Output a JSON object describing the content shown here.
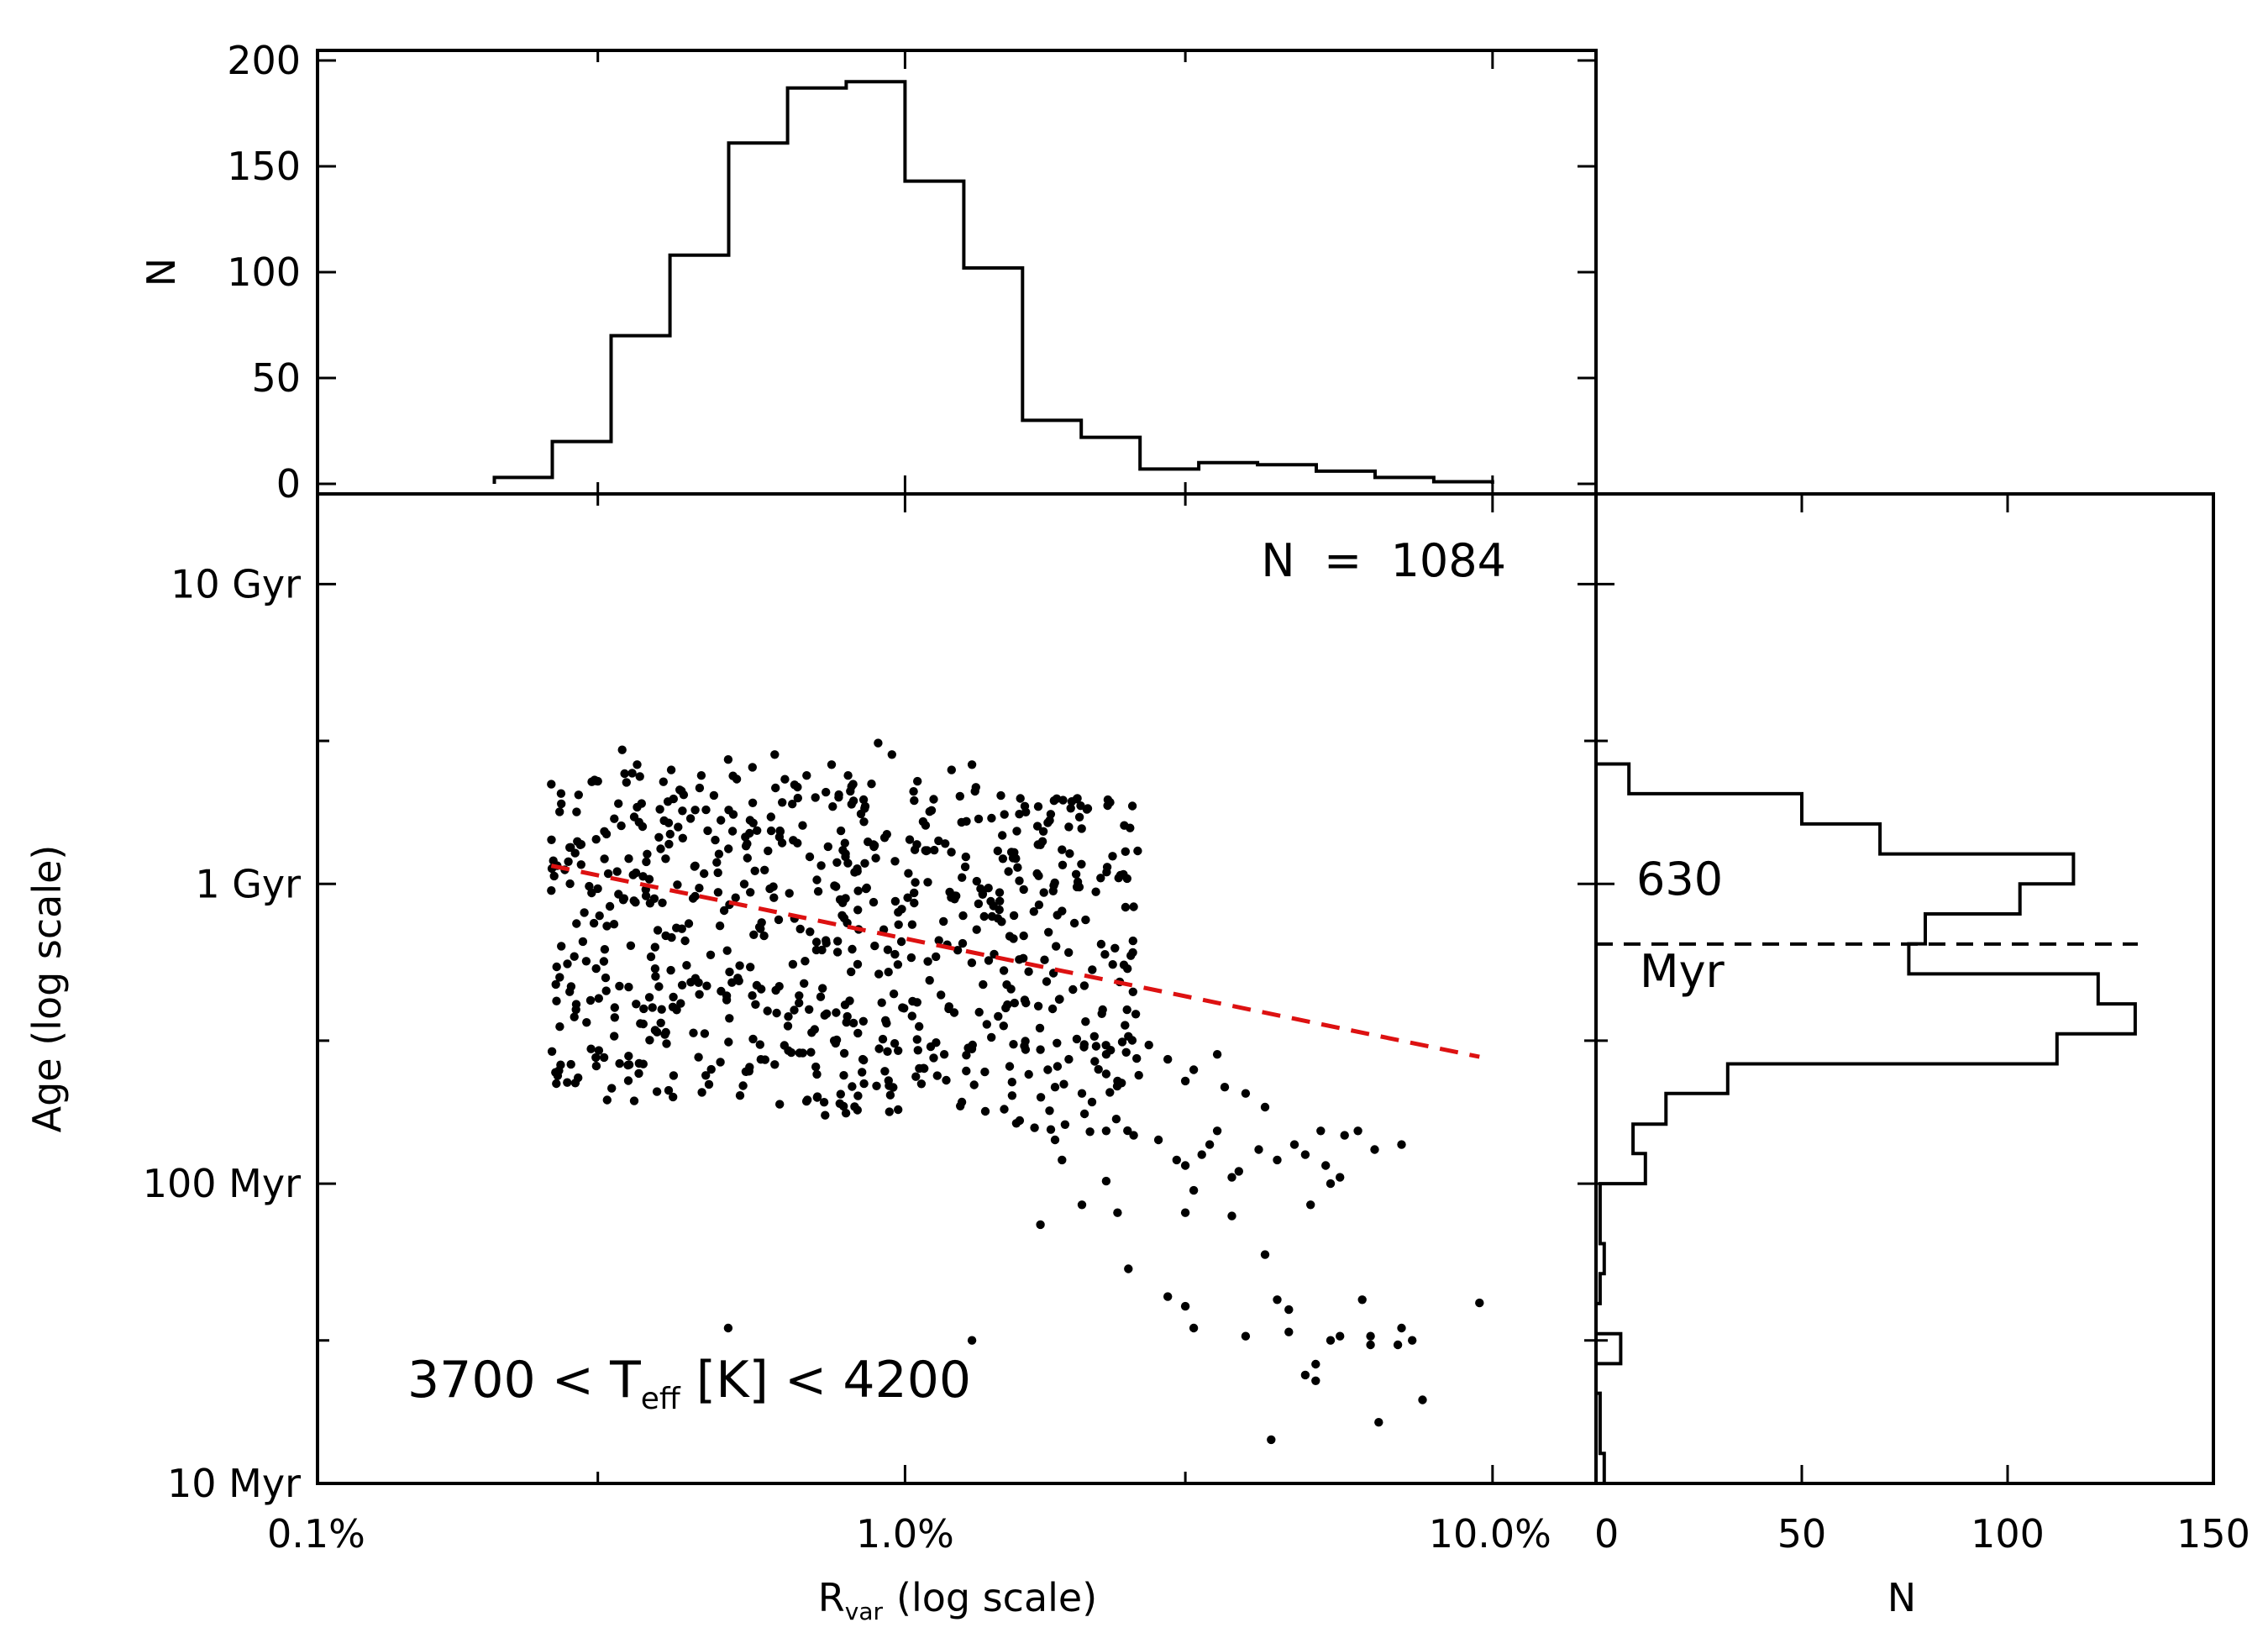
{
  "chart_data": [
    {
      "id": "scatter-main",
      "type": "scatter",
      "x_scale": "log",
      "y_scale": "log",
      "xlim": [
        0.1,
        15.0
      ],
      "ylim": [
        10,
        20000
      ],
      "xlabel": "R",
      "xlabel_sub": "var",
      "xlabel_suffix": "(log scale)",
      "ylabel": "Age (log scale)",
      "x_tick_labels": [
        {
          "value": 0.1,
          "label": "0.1%"
        },
        {
          "value": 1.0,
          "label": "1.0%"
        },
        {
          "value": 10.0,
          "label": "10.0%"
        }
      ],
      "x_minor_ticks": [
        0.3,
        3.0
      ],
      "y_tick_labels": [
        {
          "value": 10,
          "label": "10 Myr"
        },
        {
          "value": 100,
          "label": "100 Myr"
        },
        {
          "value": 1000,
          "label": "1 Gyr"
        },
        {
          "value": 10000,
          "label": "10 Gyr"
        }
      ],
      "y_minor_ticks": [
        30,
        300,
        3000
      ],
      "annotation_count": "N  =  1084",
      "annotation_teff": {
        "pre": "3700 < T",
        "sub": "eff",
        "post": " [K] < 4200"
      },
      "fit_line": {
        "color": "#dd1111",
        "style": "dashed",
        "x": [
          0.25,
          9.5
        ],
        "y": [
          1150,
          265
        ]
      },
      "point_color": "#000000",
      "generated_cloud_note": "dense cloud: x 0.25-2.5 %, age 180-2900 Myr",
      "points": [
        [
          0.25,
          2150
        ],
        [
          0.26,
          1850
        ],
        [
          0.27,
          250
        ],
        [
          0.25,
          950
        ],
        [
          0.26,
          620
        ],
        [
          0.28,
          1350
        ],
        [
          0.3,
          2200
        ],
        [
          0.32,
          1650
        ],
        [
          0.33,
          2800
        ],
        [
          0.35,
          2500
        ],
        [
          0.4,
          2400
        ],
        [
          0.45,
          2300
        ],
        [
          0.5,
          2600
        ],
        [
          0.55,
          2450
        ],
        [
          0.6,
          2700
        ],
        [
          0.68,
          2300
        ],
        [
          0.75,
          2500
        ],
        [
          0.8,
          2300
        ],
        [
          0.9,
          2950
        ],
        [
          0.95,
          2700
        ],
        [
          1.05,
          2200
        ],
        [
          1.2,
          2400
        ],
        [
          1.3,
          2500
        ],
        [
          1.32,
          2100
        ],
        [
          1.55,
          1500
        ],
        [
          1.75,
          1600
        ],
        [
          1.9,
          1550
        ],
        [
          1.85,
          1300
        ],
        [
          1.7,
          1350
        ],
        [
          1.5,
          1100
        ],
        [
          1.25,
          1050
        ],
        [
          1.7,
          280
        ],
        [
          1.75,
          240
        ],
        [
          1.8,
          210
        ],
        [
          1.9,
          260
        ],
        [
          2.0,
          200
        ],
        [
          2.1,
          310
        ],
        [
          2.2,
          270
        ],
        [
          2.3,
          220
        ],
        [
          2.4,
          310
        ],
        [
          2.5,
          230
        ],
        [
          2.6,
          290
        ],
        [
          2.8,
          260
        ],
        [
          3.0,
          220
        ],
        [
          3.1,
          240
        ],
        [
          3.4,
          270
        ],
        [
          3.5,
          210
        ],
        [
          3.8,
          200
        ],
        [
          4.1,
          180
        ],
        [
          1.8,
          140
        ],
        [
          1.85,
          120
        ],
        [
          2.2,
          150
        ],
        [
          2.45,
          145
        ],
        [
          2.7,
          140
        ],
        [
          2.9,
          120
        ],
        [
          3.0,
          115
        ],
        [
          3.2,
          125
        ],
        [
          3.3,
          135
        ],
        [
          3.4,
          150
        ],
        [
          3.6,
          105
        ],
        [
          3.7,
          110
        ],
        [
          4.0,
          130
        ],
        [
          4.3,
          120
        ],
        [
          4.6,
          135
        ],
        [
          4.8,
          125
        ],
        [
          5.1,
          150
        ],
        [
          5.2,
          115
        ],
        [
          5.6,
          145
        ],
        [
          5.9,
          150
        ],
        [
          6.3,
          130
        ],
        [
          7.0,
          135
        ],
        [
          5.3,
          100
        ],
        [
          5.5,
          105
        ],
        [
          4.9,
          85
        ],
        [
          1.7,
          73
        ],
        [
          2.0,
          85
        ],
        [
          2.2,
          102
        ],
        [
          2.3,
          80
        ],
        [
          3.0,
          80
        ],
        [
          3.1,
          95
        ],
        [
          3.6,
          78
        ],
        [
          4.1,
          58
        ],
        [
          2.4,
          52
        ],
        [
          2.8,
          42
        ],
        [
          3.0,
          39
        ],
        [
          3.1,
          33
        ],
        [
          3.8,
          31
        ],
        [
          4.3,
          41
        ],
        [
          4.5,
          32
        ],
        [
          4.5,
          38
        ],
        [
          4.8,
          23
        ],
        [
          5.0,
          25
        ],
        [
          5.3,
          30
        ],
        [
          5.5,
          31
        ],
        [
          6.0,
          41
        ],
        [
          6.2,
          31
        ],
        [
          7.0,
          33
        ],
        [
          6.2,
          29
        ],
        [
          6.9,
          29
        ],
        [
          7.3,
          30
        ],
        [
          5.0,
          22
        ],
        [
          6.4,
          16
        ],
        [
          7.6,
          19
        ],
        [
          4.2,
          14
        ],
        [
          9.5,
          40
        ],
        [
          0.5,
          33
        ],
        [
          1.3,
          30
        ]
      ]
    },
    {
      "id": "hist-top",
      "type": "bar",
      "subtype": "step-histogram",
      "x_scale": "log",
      "ylabel": "N",
      "ylim": [
        0,
        200
      ],
      "y_tick_labels": [
        {
          "value": 0,
          "label": "0"
        },
        {
          "value": 50,
          "label": "50"
        },
        {
          "value": 100,
          "label": "100"
        },
        {
          "value": 150,
          "label": "150"
        },
        {
          "value": 200,
          "label": "200"
        }
      ],
      "bin_edges": [
        0.2,
        0.251,
        0.316,
        0.398,
        0.501,
        0.631,
        0.794,
        1.0,
        1.259,
        1.585,
        1.995,
        2.512,
        3.162,
        3.981,
        5.012,
        6.31,
        7.943,
        10.0
      ],
      "values": [
        3,
        20,
        70,
        108,
        161,
        187,
        190,
        143,
        102,
        30,
        22,
        7,
        10,
        9,
        6,
        3,
        1
      ]
    },
    {
      "id": "hist-right",
      "type": "bar",
      "subtype": "step-histogram-horizontal",
      "y_scale": "log",
      "xlabel": "N",
      "xlim": [
        0,
        150
      ],
      "x_tick_labels": [
        {
          "value": 0,
          "label": "0"
        },
        {
          "value": 50,
          "label": "50"
        },
        {
          "value": 100,
          "label": "100"
        },
        {
          "value": 150,
          "label": "150"
        }
      ],
      "bin_edges_myr": [
        10.0,
        12.6,
        15.8,
        20.0,
        25.1,
        31.6,
        39.8,
        50.1,
        63.1,
        79.4,
        100.0,
        126,
        158,
        200,
        251,
        316,
        398,
        501,
        631,
        794,
        1000,
        1259,
        1585,
        2000,
        2512,
        3162
      ],
      "values": [
        2,
        1,
        1,
        0,
        6,
        0,
        1,
        2,
        1,
        1,
        12,
        9,
        17,
        32,
        112,
        131,
        122,
        76,
        80,
        103,
        116,
        69,
        50,
        8,
        0
      ],
      "median_line": {
        "value_myr": 630,
        "style": "dashed"
      },
      "label_value": "630",
      "label_unit": "Myr"
    }
  ]
}
